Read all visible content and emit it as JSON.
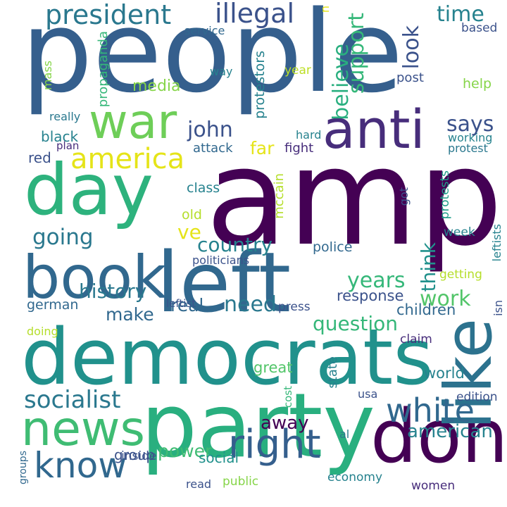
{
  "background_color": "#ffffff",
  "words": [
    {
      "text": "people",
      "color": "#355f8d",
      "rotation": 0
    },
    {
      "text": "amp",
      "color": "#440154",
      "rotation": 0
    },
    {
      "text": "democrats",
      "color": "#21918c",
      "rotation": 0
    },
    {
      "text": "party",
      "color": "#29af7f",
      "rotation": 0
    },
    {
      "text": "left",
      "color": "#31688e",
      "rotation": 0
    },
    {
      "text": "day",
      "color": "#2db27d",
      "rotation": 0
    },
    {
      "text": "book",
      "color": "#31688e",
      "rotation": 0
    },
    {
      "text": "news",
      "color": "#3fbc73",
      "rotation": 0
    },
    {
      "text": "don",
      "color": "#440154",
      "rotation": 0
    },
    {
      "text": "anti",
      "color": "#472d7b",
      "rotation": 0
    },
    {
      "text": "war",
      "color": "#6ece58",
      "rotation": 0
    },
    {
      "text": "like",
      "color": "#2c728e",
      "rotation": -90
    },
    {
      "text": "know",
      "color": "#31688e",
      "rotation": 0
    },
    {
      "text": "right",
      "color": "#355f8d",
      "rotation": 0
    },
    {
      "text": "white",
      "color": "#31688e",
      "rotation": 0
    },
    {
      "text": "america",
      "color": "#e5e419",
      "rotation": 0
    },
    {
      "text": "president",
      "color": "#2a788e",
      "rotation": 0
    },
    {
      "text": "illegal",
      "color": "#3b528b",
      "rotation": 0
    },
    {
      "text": "socialist",
      "color": "#2a788e",
      "rotation": 0
    },
    {
      "text": "john",
      "color": "#3b528b",
      "rotation": 0
    },
    {
      "text": "going",
      "color": "#2a788e",
      "rotation": 0
    },
    {
      "text": "country",
      "color": "#26828e",
      "rotation": 0
    },
    {
      "text": "history",
      "color": "#2a788e",
      "rotation": 0
    },
    {
      "text": "years",
      "color": "#35b779",
      "rotation": 0
    },
    {
      "text": "question",
      "color": "#35b779",
      "rotation": 0
    },
    {
      "text": "work",
      "color": "#52c569",
      "rotation": 0
    },
    {
      "text": "need",
      "color": "#2a788e",
      "rotation": 0
    },
    {
      "text": "real",
      "color": "#31688e",
      "rotation": 0
    },
    {
      "text": "make",
      "color": "#31688e",
      "rotation": 0
    },
    {
      "text": "american",
      "color": "#26828e",
      "rotation": 0
    },
    {
      "text": "away",
      "color": "#440154",
      "rotation": 0
    },
    {
      "text": "power",
      "color": "#3fbc73",
      "rotation": 0
    },
    {
      "text": "time",
      "color": "#26828e",
      "rotation": 0
    },
    {
      "text": "says",
      "color": "#3b528b",
      "rotation": 0
    },
    {
      "text": "look",
      "color": "#3b528b",
      "rotation": -90
    },
    {
      "text": "support",
      "color": "#35b779",
      "rotation": -90
    },
    {
      "text": "believe",
      "color": "#29af7f",
      "rotation": -90
    },
    {
      "text": "think",
      "color": "#21918c",
      "rotation": -90
    },
    {
      "text": "ve",
      "color": "#e5e419",
      "rotation": 0
    },
    {
      "text": "far",
      "color": "#e5e419",
      "rotation": 0
    },
    {
      "text": "media",
      "color": "#86d549",
      "rotation": 0
    },
    {
      "text": "based",
      "color": "#3b528b",
      "rotation": 0
    },
    {
      "text": "service",
      "color": "#31688e",
      "rotation": 0
    },
    {
      "text": "propaganda",
      "color": "#35b779",
      "rotation": -90
    },
    {
      "text": "protestors",
      "color": "#26828e",
      "rotation": -90
    },
    {
      "text": "way",
      "color": "#26828e",
      "rotation": 0
    },
    {
      "text": "year",
      "color": "#bddf26",
      "rotation": 0
    },
    {
      "text": "post",
      "color": "#3b528b",
      "rotation": 0
    },
    {
      "text": "help",
      "color": "#86d549",
      "rotation": 0
    },
    {
      "text": "mass",
      "color": "#86d549",
      "rotation": -90
    },
    {
      "text": "really",
      "color": "#2a788e",
      "rotation": 0
    },
    {
      "text": "black",
      "color": "#26828e",
      "rotation": 0
    },
    {
      "text": "plan",
      "color": "#472d7b",
      "rotation": 0
    },
    {
      "text": "red",
      "color": "#3b528b",
      "rotation": 0
    },
    {
      "text": "attack",
      "color": "#31688e",
      "rotation": 0
    },
    {
      "text": "fight",
      "color": "#472d7b",
      "rotation": 0
    },
    {
      "text": "hard",
      "color": "#26828e",
      "rotation": 0
    },
    {
      "text": "working",
      "color": "#26828e",
      "rotation": 0
    },
    {
      "text": "protest",
      "color": "#2a788e",
      "rotation": 0
    },
    {
      "text": "class",
      "color": "#26828e",
      "rotation": 0
    },
    {
      "text": "got",
      "color": "#3b528b",
      "rotation": -90
    },
    {
      "text": "protests",
      "color": "#1f9e89",
      "rotation": -90
    },
    {
      "text": "mccain",
      "color": "#b5de2b",
      "rotation": -90
    },
    {
      "text": "old",
      "color": "#b5de2b",
      "rotation": 0
    },
    {
      "text": "week",
      "color": "#26828e",
      "rotation": 0
    },
    {
      "text": "police",
      "color": "#31688e",
      "rotation": 0
    },
    {
      "text": "politicians",
      "color": "#3b528b",
      "rotation": 0
    },
    {
      "text": "getting",
      "color": "#b5de2b",
      "rotation": 0
    },
    {
      "text": "leftists",
      "color": "#26828e",
      "rotation": -90
    },
    {
      "text": "german",
      "color": "#31688e",
      "rotation": 0
    },
    {
      "text": "leftist",
      "color": "#3b528b",
      "rotation": 0
    },
    {
      "text": "response",
      "color": "#3b528b",
      "rotation": 0
    },
    {
      "text": "children",
      "color": "#31688e",
      "rotation": 0
    },
    {
      "text": "doing",
      "color": "#b5de2b",
      "rotation": 0
    },
    {
      "text": "press",
      "color": "#3b528b",
      "rotation": 0
    },
    {
      "text": "claim",
      "color": "#472d7b",
      "rotation": 0
    },
    {
      "text": "isn",
      "color": "#3b528b",
      "rotation": -90
    },
    {
      "text": "great",
      "color": "#52c569",
      "rotation": 0
    },
    {
      "text": "state",
      "color": "#26828e",
      "rotation": -90
    },
    {
      "text": "world",
      "color": "#26828e",
      "rotation": 0
    },
    {
      "text": "usa",
      "color": "#3b528b",
      "rotation": 0
    },
    {
      "text": "cost",
      "color": "#35b779",
      "rotation": -90
    },
    {
      "text": "edition",
      "color": "#3b528b",
      "rotation": 0
    },
    {
      "text": "al",
      "color": "#2a788e",
      "rotation": 0
    },
    {
      "text": "social",
      "color": "#21918c",
      "rotation": 0
    },
    {
      "text": "group",
      "color": "#3b528b",
      "rotation": 0
    },
    {
      "text": "inside",
      "color": "#3b528b",
      "rotation": 0
    },
    {
      "text": "read",
      "color": "#3b528b",
      "rotation": 0
    },
    {
      "text": "public",
      "color": "#86d549",
      "rotation": 0
    },
    {
      "text": "economy",
      "color": "#26828e",
      "rotation": 0
    },
    {
      "text": "women",
      "color": "#472d7b",
      "rotation": 0
    },
    {
      "text": "groups",
      "color": "#31688e",
      "rotation": -90
    },
    {
      "text": "n",
      "color": "#e5e419",
      "rotation": -90
    }
  ]
}
